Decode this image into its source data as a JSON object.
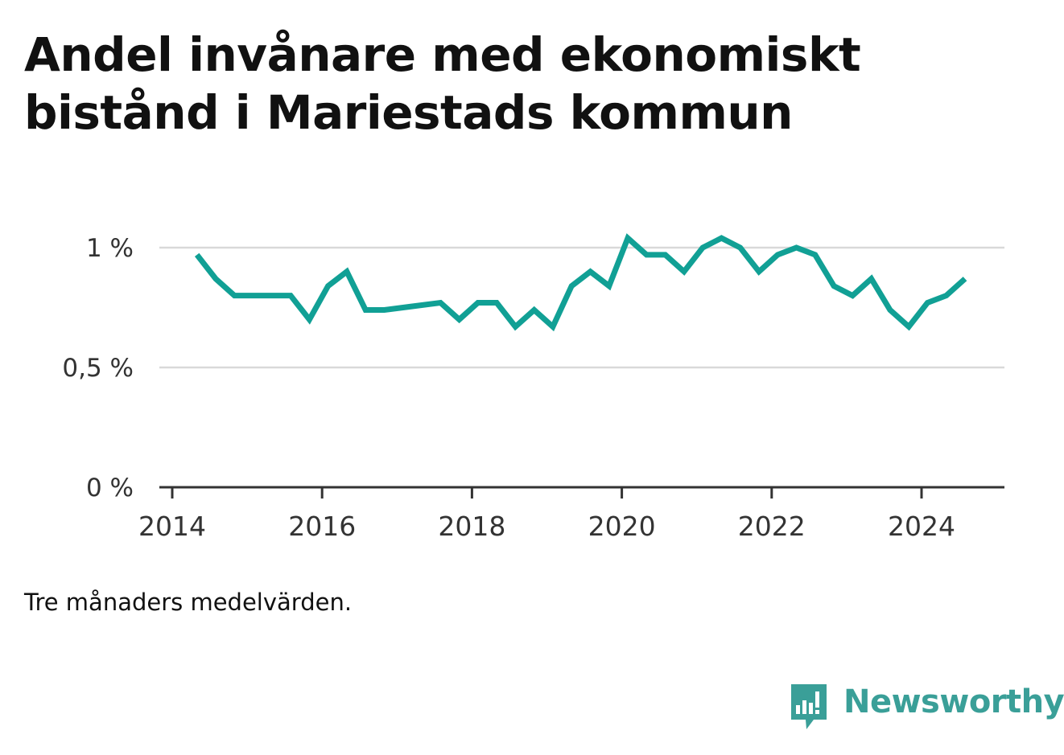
{
  "title": "Andel invånare med ekonomiskt bistånd i Mariestads kommun",
  "note": "Tre månaders medelvärden.",
  "brand": {
    "name": "Newsworthy",
    "icon": "newsworthy-logo-icon",
    "color": "#3a9f98"
  },
  "chart_data": {
    "type": "line",
    "title": "Andel invånare med ekonomiskt bistånd i Mariestads kommun",
    "xlabel": "",
    "ylabel": "",
    "xlim": [
      2014.0,
      2025.1
    ],
    "ylim": [
      0,
      1.0
    ],
    "x_ticks": [
      2014,
      2016,
      2018,
      2020,
      2022,
      2024
    ],
    "x_tick_labels": [
      "2014",
      "2016",
      "2018",
      "2020",
      "2022",
      "2024"
    ],
    "y_ticks": [
      0,
      0.5,
      1.0
    ],
    "y_tick_labels": [
      "0 %",
      "0,5 %",
      "1 %"
    ],
    "grid": true,
    "line_color": "#11a095",
    "series": [
      {
        "x": [
          2014.33,
          2014.58,
          2014.83,
          2015.08,
          2015.33,
          2015.58,
          2015.83,
          2016.08,
          2016.33,
          2016.58,
          2016.83,
          2017.58,
          2017.83,
          2018.08,
          2018.33,
          2018.58,
          2018.83,
          2019.08,
          2019.33,
          2019.58,
          2019.83,
          2020.08,
          2020.33,
          2020.58,
          2020.83,
          2021.08,
          2021.33,
          2021.58,
          2021.83,
          2022.08,
          2022.33,
          2022.58,
          2022.83,
          2023.08,
          2023.33,
          2023.58,
          2023.83,
          2024.08,
          2024.33,
          2024.58
        ],
        "values": [
          0.97,
          0.87,
          0.8,
          0.8,
          0.8,
          0.8,
          0.7,
          0.84,
          0.9,
          0.74,
          0.74,
          0.77,
          0.7,
          0.77,
          0.77,
          0.67,
          0.74,
          0.67,
          0.84,
          0.9,
          0.84,
          1.04,
          0.97,
          0.97,
          0.9,
          1.0,
          1.04,
          1.0,
          0.9,
          0.97,
          1.0,
          0.97,
          0.84,
          0.8,
          0.87,
          0.74,
          0.67,
          0.77,
          0.8,
          0.87
        ]
      }
    ]
  }
}
